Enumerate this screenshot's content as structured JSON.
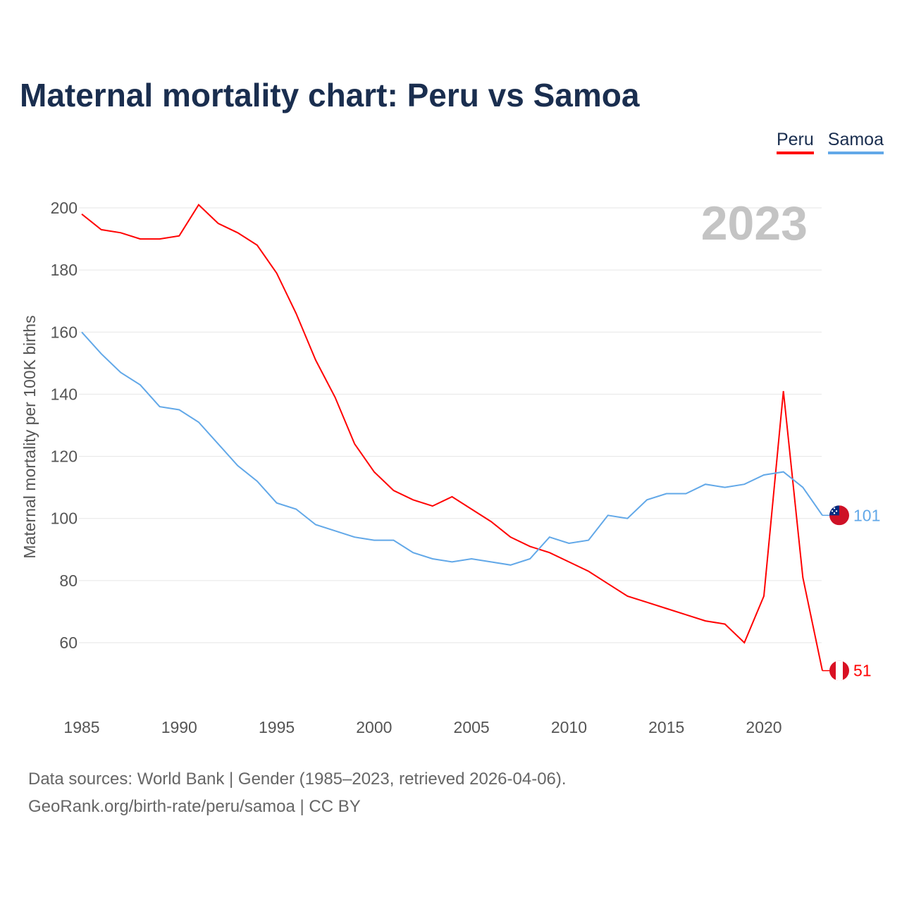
{
  "title": "Maternal mortality chart: Peru vs Samoa",
  "footer": {
    "line1": "Data sources: World Bank | Gender (1985–2023, retrieved 2026-04-06).",
    "line2": "GeoRank.org/birth-rate/peru/samoa | CC BY"
  },
  "chart_data": {
    "type": "line",
    "title": "Maternal mortality chart: Peru vs Samoa",
    "ylabel": "Maternal mortality per 100K births",
    "xlabel": "",
    "year_label": "2023",
    "xlim": [
      1985,
      2023
    ],
    "ylim": [
      40,
      210
    ],
    "xticks": [
      "1985",
      "1990",
      "1995",
      "2000",
      "2005",
      "2010",
      "2015",
      "2020"
    ],
    "yticks": [
      "60",
      "80",
      "100",
      "120",
      "140",
      "160",
      "180",
      "200"
    ],
    "grid": true,
    "legend_position": "top-right",
    "x": [
      1985,
      1986,
      1987,
      1988,
      1989,
      1990,
      1991,
      1992,
      1993,
      1994,
      1995,
      1996,
      1997,
      1998,
      1999,
      2000,
      2001,
      2002,
      2003,
      2004,
      2005,
      2006,
      2007,
      2008,
      2009,
      2010,
      2011,
      2012,
      2013,
      2014,
      2015,
      2016,
      2017,
      2018,
      2019,
      2020,
      2021,
      2022,
      2023
    ],
    "series": [
      {
        "name": "Peru",
        "color": "#ff0000",
        "end_label": "51",
        "values": [
          198,
          193,
          192,
          190,
          190,
          191,
          201,
          195,
          192,
          188,
          179,
          166,
          151,
          139,
          124,
          115,
          109,
          106,
          104,
          107,
          103,
          99,
          94,
          91,
          89,
          86,
          83,
          79,
          75,
          73,
          71,
          69,
          67,
          66,
          60,
          75,
          141,
          81,
          51
        ]
      },
      {
        "name": "Samoa",
        "color": "#62a8e8",
        "end_label": "101",
        "values": [
          160,
          153,
          147,
          143,
          136,
          135,
          131,
          124,
          117,
          112,
          105,
          103,
          98,
          96,
          94,
          93,
          93,
          89,
          87,
          86,
          87,
          86,
          85,
          87,
          94,
          92,
          93,
          101,
          100,
          106,
          108,
          108,
          111,
          110,
          111,
          114,
          115,
          110,
          101
        ]
      }
    ]
  }
}
